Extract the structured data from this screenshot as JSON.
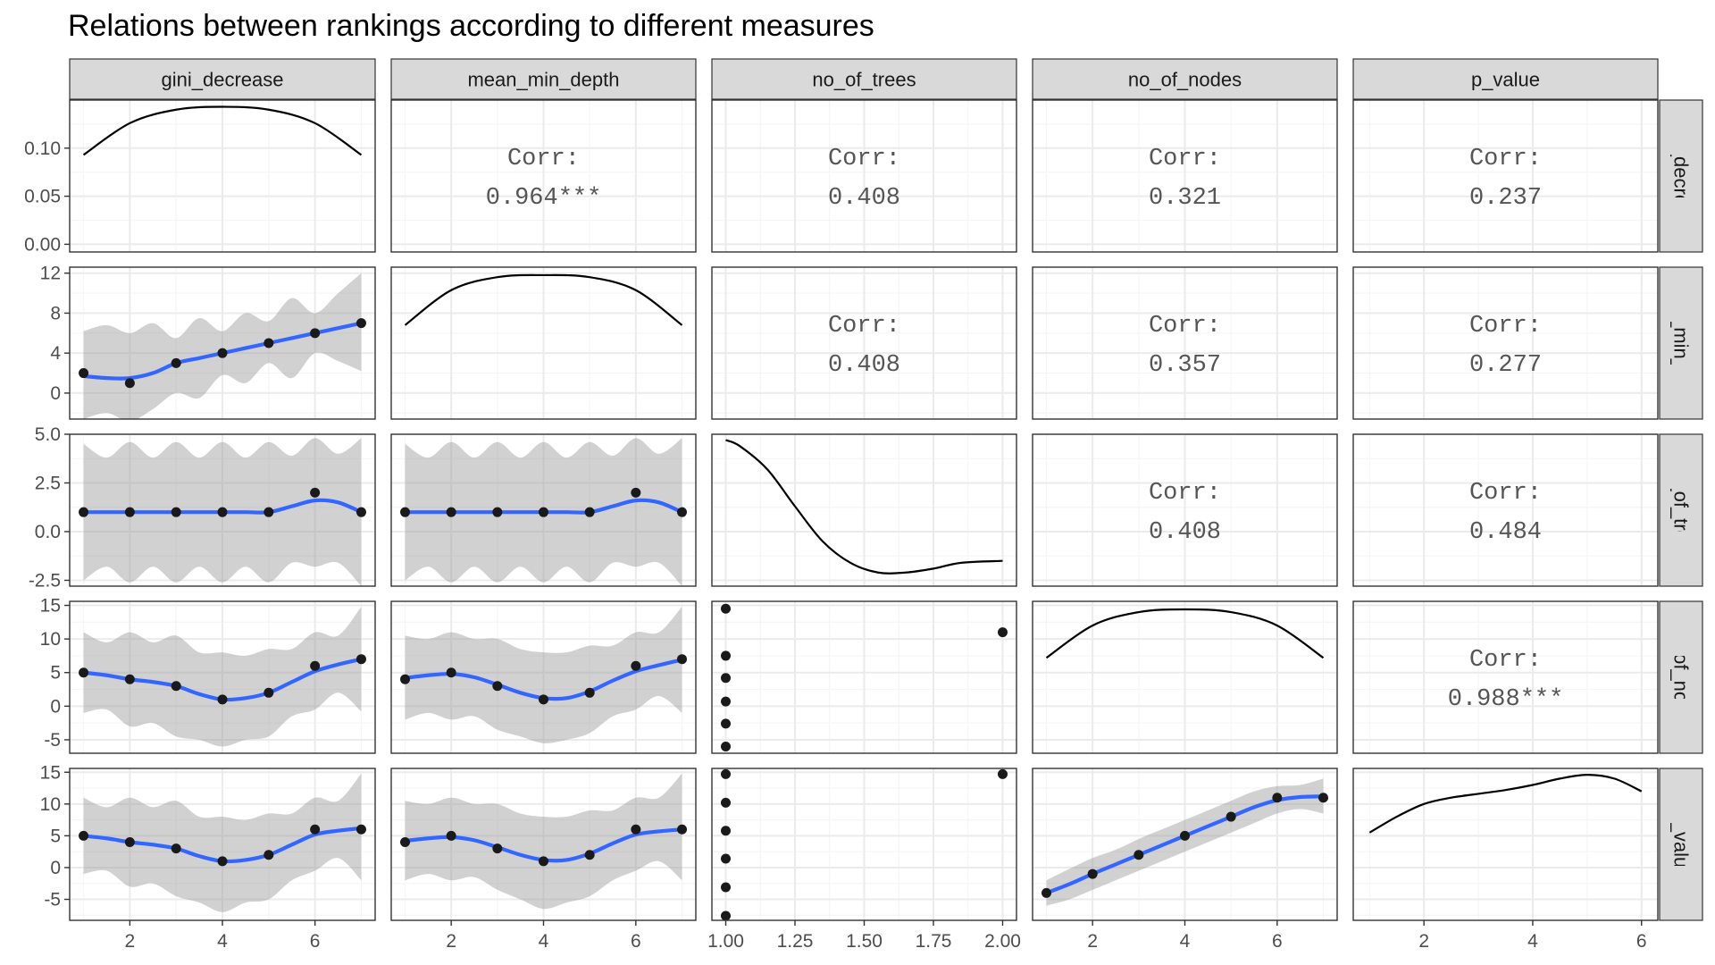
{
  "title": "Relations between rankings according to different measures",
  "chart_data": {
    "type": "scatter",
    "variables": [
      "gini_decrease",
      "mean_min_depth",
      "no_of_trees",
      "no_of_nodes",
      "p_value"
    ],
    "corr_label": "Corr:",
    "correlations": [
      {
        "row": 0,
        "col": 1,
        "value": "0.964***"
      },
      {
        "row": 0,
        "col": 2,
        "value": "0.408"
      },
      {
        "row": 0,
        "col": 3,
        "value": "0.321"
      },
      {
        "row": 0,
        "col": 4,
        "value": "0.237"
      },
      {
        "row": 1,
        "col": 2,
        "value": "0.408"
      },
      {
        "row": 1,
        "col": 3,
        "value": "0.357"
      },
      {
        "row": 1,
        "col": 4,
        "value": "0.277"
      },
      {
        "row": 2,
        "col": 3,
        "value": "0.408"
      },
      {
        "row": 2,
        "col": 4,
        "value": "0.484"
      },
      {
        "row": 3,
        "col": 4,
        "value": "0.988***"
      }
    ],
    "x_axes": [
      {
        "xlim": [
          0.7,
          7.3
        ],
        "ticks": [
          2,
          4,
          6
        ],
        "tick_labels": [
          "2",
          "4",
          "6"
        ]
      },
      {
        "xlim": [
          0.7,
          7.3
        ],
        "ticks": [
          2,
          4,
          6
        ],
        "tick_labels": [
          "2",
          "4",
          "6"
        ]
      },
      {
        "xlim": [
          0.95,
          2.05
        ],
        "ticks": [
          1.0,
          1.25,
          1.5,
          1.75,
          2.0
        ],
        "tick_labels": [
          "1.00",
          "1.25",
          "1.50",
          "1.75",
          "2.00"
        ]
      },
      {
        "xlim": [
          0.7,
          7.3
        ],
        "ticks": [
          2,
          4,
          6
        ],
        "tick_labels": [
          "2",
          "4",
          "6"
        ]
      },
      {
        "xlim": [
          0.7,
          6.3
        ],
        "ticks": [
          2,
          4,
          6
        ],
        "tick_labels": [
          "2",
          "4",
          "6"
        ]
      }
    ],
    "y_axes": [
      {
        "ylim": [
          -0.008,
          0.15
        ],
        "ticks": [
          0.0,
          0.05,
          0.1
        ],
        "tick_labels": [
          "0.00",
          "0.05",
          "0.10"
        ]
      },
      {
        "ylim": [
          -2.6,
          12.6
        ],
        "ticks": [
          0,
          4,
          8,
          12
        ],
        "tick_labels": [
          "0",
          "4",
          "8",
          "12"
        ]
      },
      {
        "ylim": [
          -2.8,
          5.0
        ],
        "ticks": [
          -2.5,
          0.0,
          2.5,
          5.0
        ],
        "tick_labels": [
          "-2.5",
          "0.0",
          "2.5",
          "5.0"
        ]
      },
      {
        "ylim": [
          -7.0,
          15.6
        ],
        "ticks": [
          -5,
          0,
          5,
          10,
          15
        ],
        "tick_labels": [
          "-5",
          "0",
          "5",
          "10",
          "15"
        ]
      },
      {
        "ylim": [
          -8.3,
          15.6
        ],
        "ticks": [
          -5,
          0,
          5,
          10,
          15
        ],
        "tick_labels": [
          "-5",
          "0",
          "5",
          "10",
          "15"
        ]
      }
    ],
    "density_panels": [
      {
        "index": 0,
        "x": [
          1,
          2,
          3,
          4,
          5,
          6,
          7
        ],
        "y": [
          0.093,
          0.126,
          0.14,
          0.143,
          0.14,
          0.126,
          0.093
        ]
      },
      {
        "index": 1,
        "x": [
          1,
          2,
          3,
          4,
          5,
          6,
          7
        ],
        "y": [
          6.8,
          10.3,
          11.6,
          11.8,
          11.6,
          10.3,
          6.8
        ]
      },
      {
        "index": 2,
        "x": [
          1.0,
          1.05,
          1.15,
          1.25,
          1.35,
          1.45,
          1.55,
          1.65,
          1.75,
          1.85,
          2.0
        ],
        "y": [
          4.7,
          4.4,
          3.2,
          1.3,
          -0.5,
          -1.6,
          -2.1,
          -2.1,
          -1.9,
          -1.6,
          -1.5
        ]
      },
      {
        "index": 3,
        "x": [
          1,
          2,
          3,
          4,
          5,
          6,
          7
        ],
        "y": [
          7.2,
          12.0,
          14.0,
          14.4,
          14.0,
          12.0,
          7.2
        ]
      },
      {
        "index": 4,
        "x": [
          1.0,
          1.5,
          2.0,
          2.5,
          3.0,
          3.5,
          4.0,
          4.5,
          5.0,
          5.5,
          6.0
        ],
        "y": [
          5.5,
          8.0,
          10.0,
          11.0,
          11.6,
          12.2,
          13.0,
          14.0,
          14.6,
          14.0,
          12.0
        ]
      }
    ],
    "scatter_panels": [
      {
        "row": 1,
        "col": 0,
        "points": [
          [
            1,
            2
          ],
          [
            2,
            1
          ],
          [
            3,
            3
          ],
          [
            4,
            4
          ],
          [
            5,
            5
          ],
          [
            6,
            6
          ],
          [
            7,
            7
          ]
        ],
        "smooth_x": [
          1,
          1.5,
          2,
          2.5,
          3,
          3.5,
          4,
          4.5,
          5,
          5.5,
          6,
          6.5,
          7
        ],
        "smooth_y": [
          1.7,
          1.5,
          1.5,
          2.0,
          3.0,
          3.5,
          4.0,
          4.5,
          5.0,
          5.5,
          6.0,
          6.5,
          7.0
        ],
        "band_upper": [
          6.2,
          6.8,
          6.0,
          7.0,
          5.5,
          7.5,
          6.2,
          8.0,
          7.2,
          9.5,
          8.0,
          10.0,
          12.0
        ],
        "band_lower": [
          -2.6,
          -2.0,
          -2.8,
          -1.6,
          0.0,
          -0.5,
          1.8,
          1.0,
          3.0,
          1.5,
          4.0,
          3.2,
          2.2
        ]
      },
      {
        "row": 2,
        "col": 0,
        "points": [
          [
            1,
            1
          ],
          [
            2,
            1
          ],
          [
            3,
            1
          ],
          [
            4,
            1
          ],
          [
            5,
            1
          ],
          [
            6,
            2
          ],
          [
            7,
            1
          ]
        ],
        "smooth_x": [
          1,
          1.5,
          2,
          2.5,
          3,
          3.5,
          4,
          4.5,
          5,
          5.5,
          6,
          6.5,
          7
        ],
        "smooth_y": [
          1.0,
          1.0,
          1.0,
          1.0,
          1.0,
          1.0,
          1.0,
          1.0,
          1.0,
          1.3,
          1.6,
          1.5,
          1.0
        ],
        "band_upper": [
          4.5,
          3.8,
          4.6,
          3.8,
          4.6,
          3.8,
          4.6,
          3.8,
          4.6,
          3.9,
          4.8,
          4.0,
          4.8
        ],
        "band_lower": [
          -2.5,
          -1.8,
          -2.6,
          -1.8,
          -2.6,
          -1.8,
          -2.6,
          -1.8,
          -2.6,
          -1.6,
          -1.8,
          -1.6,
          -2.8
        ]
      },
      {
        "row": 2,
        "col": 1,
        "points": [
          [
            1,
            1
          ],
          [
            2,
            1
          ],
          [
            3,
            1
          ],
          [
            4,
            1
          ],
          [
            5,
            1
          ],
          [
            6,
            2
          ],
          [
            7,
            1
          ]
        ],
        "smooth_x": [
          1,
          1.5,
          2,
          2.5,
          3,
          3.5,
          4,
          4.5,
          5,
          5.5,
          6,
          6.5,
          7
        ],
        "smooth_y": [
          1.0,
          1.0,
          1.0,
          1.0,
          1.0,
          1.0,
          1.0,
          1.0,
          1.0,
          1.3,
          1.6,
          1.5,
          1.0
        ],
        "band_upper": [
          4.5,
          3.8,
          4.6,
          3.8,
          4.6,
          3.8,
          4.6,
          3.8,
          4.6,
          3.9,
          4.8,
          4.0,
          4.8
        ],
        "band_lower": [
          -2.5,
          -1.8,
          -2.6,
          -1.8,
          -2.6,
          -1.8,
          -2.6,
          -1.8,
          -2.6,
          -1.6,
          -1.8,
          -1.6,
          -2.8
        ]
      },
      {
        "row": 3,
        "col": 0,
        "points": [
          [
            1,
            5
          ],
          [
            2,
            4
          ],
          [
            3,
            3
          ],
          [
            4,
            1
          ],
          [
            5,
            2
          ],
          [
            6,
            6
          ],
          [
            7,
            7
          ]
        ],
        "smooth_x": [
          1,
          1.5,
          2,
          2.5,
          3,
          3.5,
          4,
          4.5,
          5,
          5.5,
          6,
          6.5,
          7
        ],
        "smooth_y": [
          5.0,
          4.6,
          4.0,
          3.6,
          3.0,
          1.8,
          1.0,
          1.2,
          2.0,
          3.6,
          5.2,
          6.2,
          7.0
        ],
        "band_upper": [
          11.0,
          9.5,
          11.0,
          9.5,
          10.5,
          8.0,
          8.0,
          7.5,
          8.5,
          8.5,
          11.0,
          10.5,
          14.8
        ],
        "band_lower": [
          -1.0,
          -0.5,
          -3.0,
          -2.5,
          -4.5,
          -5.0,
          -6.0,
          -5.0,
          -4.5,
          -1.5,
          -0.5,
          2.0,
          -0.8
        ]
      },
      {
        "row": 3,
        "col": 1,
        "points": [
          [
            1,
            4
          ],
          [
            2,
            5
          ],
          [
            3,
            3
          ],
          [
            4,
            1
          ],
          [
            5,
            2
          ],
          [
            6,
            6
          ],
          [
            7,
            7
          ]
        ],
        "smooth_x": [
          1,
          1.5,
          2,
          2.5,
          3,
          3.5,
          4,
          4.5,
          5,
          5.5,
          6,
          6.5,
          7
        ],
        "smooth_y": [
          4.2,
          4.6,
          4.8,
          4.3,
          3.2,
          2.0,
          1.2,
          1.2,
          2.2,
          3.8,
          5.2,
          6.1,
          6.9
        ],
        "band_upper": [
          10.5,
          10.0,
          11.0,
          10.0,
          10.0,
          8.5,
          8.0,
          8.0,
          9.0,
          9.0,
          11.0,
          11.0,
          14.8
        ],
        "band_lower": [
          -2.0,
          -1.0,
          -2.0,
          -1.5,
          -3.5,
          -4.5,
          -5.5,
          -5.0,
          -4.0,
          -1.5,
          -0.5,
          1.5,
          -1.0
        ]
      },
      {
        "row": 3,
        "col": 2,
        "points": [
          [
            1,
            14.5
          ],
          [
            1,
            7.5
          ],
          [
            1,
            4.2
          ],
          [
            1,
            0.7
          ],
          [
            1,
            -2.6
          ],
          [
            1,
            -6.0
          ],
          [
            2,
            11.0
          ]
        ],
        "smooth_x": [],
        "smooth_y": [],
        "band_upper": [],
        "band_lower": []
      },
      {
        "row": 4,
        "col": 0,
        "points": [
          [
            1,
            5
          ],
          [
            2,
            4
          ],
          [
            3,
            3
          ],
          [
            4,
            1
          ],
          [
            5,
            2
          ],
          [
            6,
            6
          ],
          [
            7,
            6
          ]
        ],
        "smooth_x": [
          1,
          1.5,
          2,
          2.5,
          3,
          3.5,
          4,
          4.5,
          5,
          5.5,
          6,
          6.5,
          7
        ],
        "smooth_y": [
          5.0,
          4.6,
          4.0,
          3.6,
          3.0,
          1.8,
          1.0,
          1.2,
          2.0,
          3.6,
          5.2,
          5.8,
          6.2
        ],
        "band_upper": [
          11.0,
          9.5,
          11.0,
          9.5,
          10.5,
          8.0,
          8.0,
          7.5,
          8.5,
          8.5,
          11.0,
          10.5,
          14.8
        ],
        "band_lower": [
          -1.0,
          -0.5,
          -3.0,
          -2.5,
          -4.5,
          -5.5,
          -7.0,
          -5.5,
          -5.0,
          -2.0,
          -0.5,
          1.5,
          -2.0
        ]
      },
      {
        "row": 4,
        "col": 1,
        "points": [
          [
            1,
            4
          ],
          [
            2,
            5
          ],
          [
            3,
            3
          ],
          [
            4,
            1
          ],
          [
            5,
            2
          ],
          [
            6,
            6
          ],
          [
            7,
            6
          ]
        ],
        "smooth_x": [
          1,
          1.5,
          2,
          2.5,
          3,
          3.5,
          4,
          4.5,
          5,
          5.5,
          6,
          6.5,
          7
        ],
        "smooth_y": [
          4.2,
          4.6,
          4.8,
          4.3,
          3.2,
          2.0,
          1.2,
          1.2,
          2.2,
          3.8,
          5.2,
          5.7,
          6.0
        ],
        "band_upper": [
          10.5,
          10.0,
          11.0,
          10.0,
          10.0,
          8.5,
          8.0,
          8.0,
          9.0,
          9.0,
          11.0,
          11.0,
          14.8
        ],
        "band_lower": [
          -2.0,
          -1.0,
          -2.0,
          -1.5,
          -3.5,
          -5.0,
          -6.5,
          -5.5,
          -4.5,
          -2.0,
          -0.5,
          1.0,
          -2.0
        ]
      },
      {
        "row": 4,
        "col": 2,
        "points": [
          [
            1,
            14.7
          ],
          [
            1,
            10.2
          ],
          [
            1,
            5.8
          ],
          [
            1,
            1.4
          ],
          [
            1,
            -3.1
          ],
          [
            1,
            -7.6
          ],
          [
            2,
            14.7
          ]
        ],
        "smooth_x": [],
        "smooth_y": [],
        "band_upper": [],
        "band_lower": []
      },
      {
        "row": 4,
        "col": 3,
        "points": [
          [
            1,
            -4
          ],
          [
            2,
            -1
          ],
          [
            3,
            2
          ],
          [
            4,
            5
          ],
          [
            5,
            8
          ],
          [
            6,
            11
          ],
          [
            7,
            11
          ]
        ],
        "smooth_x": [
          1,
          1.5,
          2,
          2.5,
          3,
          3.5,
          4,
          4.5,
          5,
          5.5,
          6,
          6.5,
          7
        ],
        "smooth_y": [
          -4.0,
          -2.6,
          -1.0,
          0.5,
          2.0,
          3.5,
          5.0,
          6.5,
          8.0,
          9.5,
          10.6,
          11.1,
          11.2
        ],
        "band_upper": [
          -2.0,
          -0.2,
          1.5,
          2.8,
          4.5,
          6.0,
          7.5,
          9.0,
          10.5,
          12.0,
          12.8,
          13.0,
          14.0
        ],
        "band_lower": [
          -6.0,
          -5.0,
          -3.5,
          -2.0,
          -0.5,
          1.0,
          2.5,
          4.0,
          5.5,
          7.0,
          8.5,
          9.2,
          8.5
        ]
      }
    ]
  },
  "colors": {
    "strip_fill": "#d9d9d9",
    "grid_major": "#ebebeb",
    "grid_minor": "#f5f5f5",
    "smooth_line": "#3366ff",
    "band_fill": "#999999",
    "point": "#1a1a1a"
  }
}
